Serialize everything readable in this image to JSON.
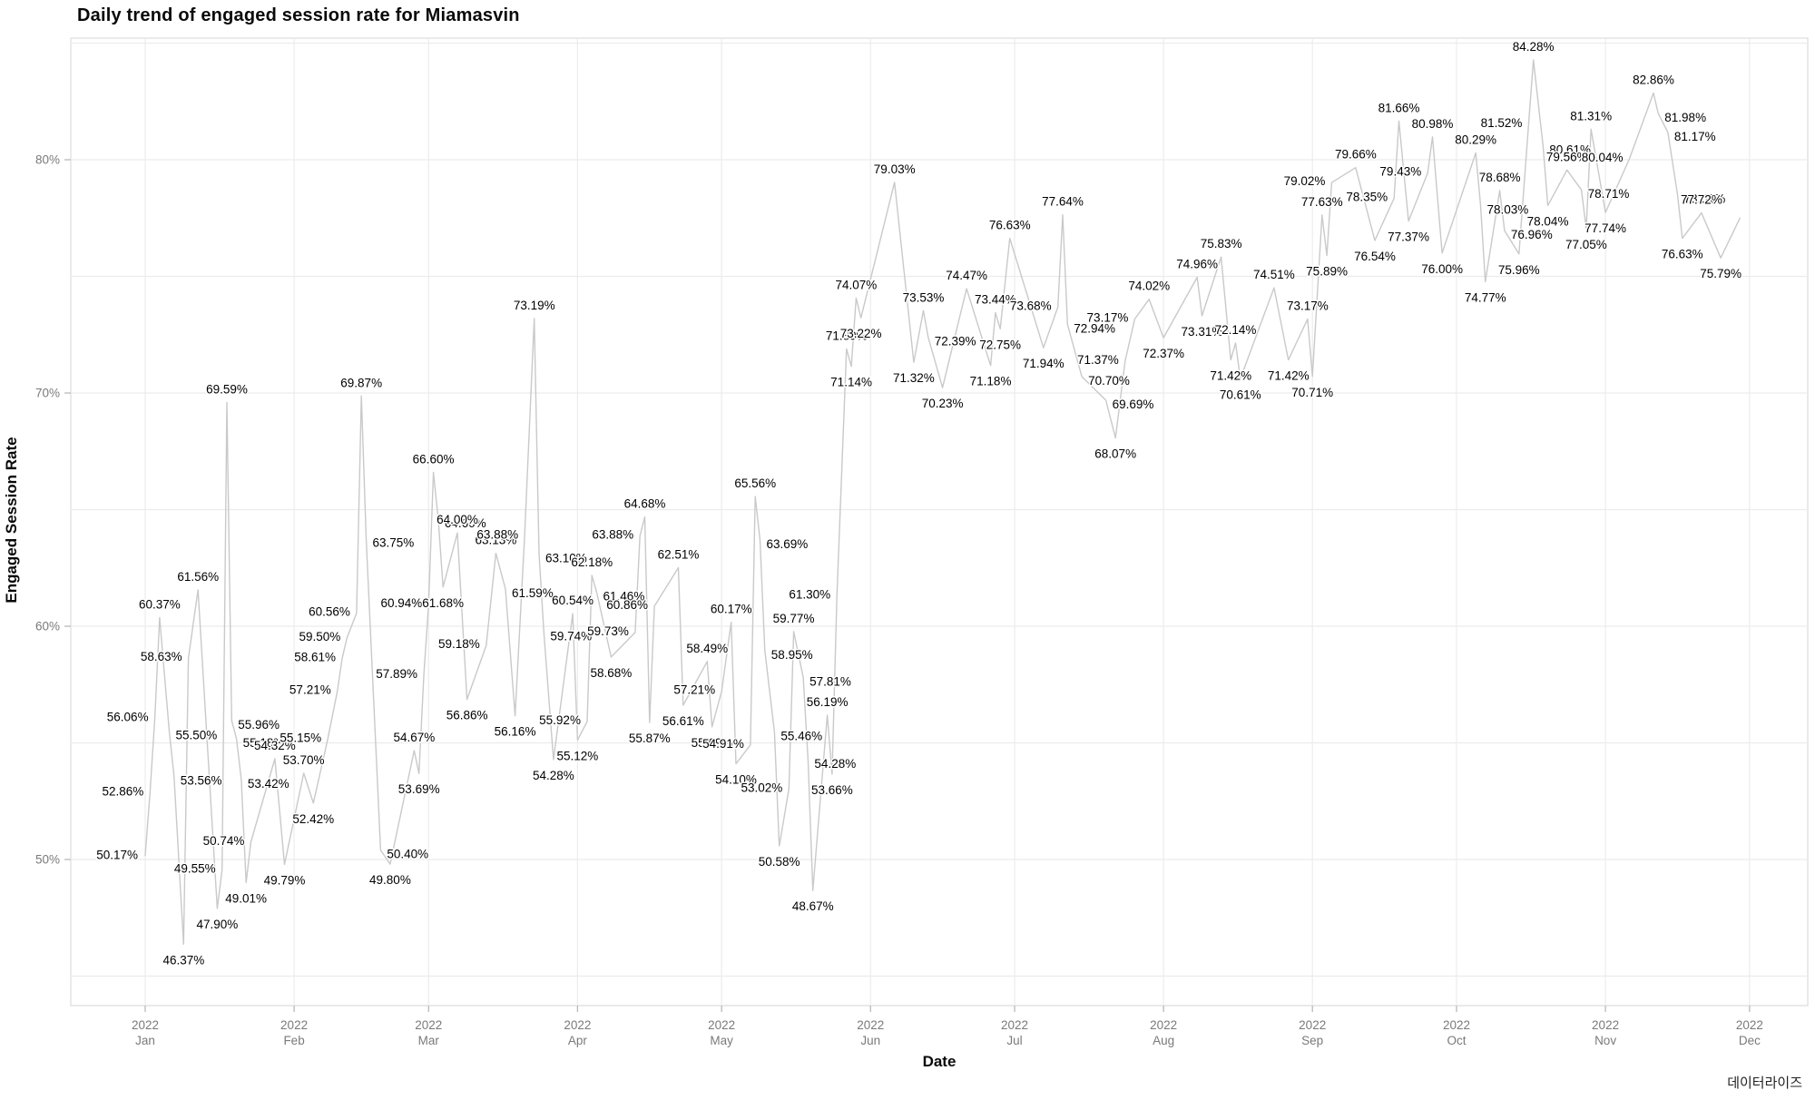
{
  "page": {
    "title": "Daily trend of engaged session rate for Miamasvin",
    "caption": "데이터라이즈"
  },
  "chart_data": {
    "type": "line",
    "title": "Daily trend of engaged session rate for Miamasvin",
    "xlabel": "Date",
    "ylabel": "Engaged Session Rate",
    "series_name": "engaged session rate",
    "year_label": "2022",
    "x_tick_months": [
      "Jan",
      "Feb",
      "Mar",
      "Apr",
      "May",
      "Jun",
      "Jul",
      "Aug",
      "Sep",
      "Oct",
      "Nov",
      "Dec"
    ],
    "y_ticks": [
      {
        "v": 50,
        "label": "50%"
      },
      {
        "v": 60,
        "label": "60%"
      },
      {
        "v": 70,
        "label": "70%"
      },
      {
        "v": 80,
        "label": "80%"
      }
    ],
    "ylim": [
      43.7,
      85.5
    ],
    "grid": true,
    "legend": false,
    "line_color": "#c9c9c9",
    "grid_color": "#ececec",
    "panel_border_color": "#dcdcdc",
    "tick_color": "#b3b3b3",
    "axis_text_color": "#7a7a7a",
    "label_color": "#000000",
    "points": [
      {
        "d": "2022-01-01",
        "v": 50.17
      },
      {
        "d": "2022-01-02",
        "v": 52.86
      },
      {
        "d": "2022-01-03",
        "v": 56.06
      },
      {
        "d": "2022-01-04",
        "v": 60.37
      },
      {
        "d": "2022-01-06",
        "v": 55.5
      },
      {
        "d": "2022-01-07",
        "v": 53.56
      },
      {
        "d": "2022-01-09",
        "v": 46.37
      },
      {
        "d": "2022-01-10",
        "v": 58.63
      },
      {
        "d": "2022-01-12",
        "v": 61.56
      },
      {
        "d": "2022-01-16",
        "v": 47.9
      },
      {
        "d": "2022-01-17",
        "v": 49.55
      },
      {
        "d": "2022-01-18",
        "v": 69.59
      },
      {
        "d": "2022-01-19",
        "v": 55.96
      },
      {
        "d": "2022-01-20",
        "v": 55.18
      },
      {
        "d": "2022-01-21",
        "v": 53.42
      },
      {
        "d": "2022-01-22",
        "v": 49.01
      },
      {
        "d": "2022-01-23",
        "v": 50.74
      },
      {
        "d": "2022-01-28",
        "v": 54.32
      },
      {
        "d": "2022-01-30",
        "v": 49.79
      },
      {
        "d": "2022-02-03",
        "v": 53.7
      },
      {
        "d": "2022-02-05",
        "v": 52.42
      },
      {
        "d": "2022-02-08",
        "v": 55.15
      },
      {
        "d": "2022-02-10",
        "v": 57.21
      },
      {
        "d": "2022-02-11",
        "v": 58.61
      },
      {
        "d": "2022-02-12",
        "v": 59.5
      },
      {
        "d": "2022-02-14",
        "v": 60.56
      },
      {
        "d": "2022-02-15",
        "v": 69.87
      },
      {
        "d": "2022-02-16",
        "v": 63.75
      },
      {
        "d": "2022-02-19",
        "v": 50.4
      },
      {
        "d": "2022-02-21",
        "v": 49.8
      },
      {
        "d": "2022-02-26",
        "v": 54.67
      },
      {
        "d": "2022-02-27",
        "v": 53.69
      },
      {
        "d": "2022-02-28",
        "v": 57.89
      },
      {
        "d": "2022-03-01",
        "v": 60.94
      },
      {
        "d": "2022-03-02",
        "v": 66.6
      },
      {
        "d": "2022-03-03",
        "v": 64.6
      },
      {
        "d": "2022-03-04",
        "v": 61.68
      },
      {
        "d": "2022-03-07",
        "v": 64.0
      },
      {
        "d": "2022-03-09",
        "v": 56.86
      },
      {
        "d": "2022-03-13",
        "v": 59.18
      },
      {
        "d": "2022-03-15",
        "v": 63.13
      },
      {
        "d": "2022-03-17",
        "v": 61.59
      },
      {
        "d": "2022-03-19",
        "v": 56.16
      },
      {
        "d": "2022-03-21",
        "v": 63.88
      },
      {
        "d": "2022-03-23",
        "v": 73.19
      },
      {
        "d": "2022-03-24",
        "v": 63.1
      },
      {
        "d": "2022-03-25",
        "v": 59.74
      },
      {
        "d": "2022-03-27",
        "v": 54.28
      },
      {
        "d": "2022-03-31",
        "v": 60.54
      },
      {
        "d": "2022-04-01",
        "v": 55.12
      },
      {
        "d": "2022-04-03",
        "v": 55.92
      },
      {
        "d": "2022-04-04",
        "v": 62.18
      },
      {
        "d": "2022-04-05",
        "v": 61.46
      },
      {
        "d": "2022-04-08",
        "v": 58.68
      },
      {
        "d": "2022-04-13",
        "v": 59.73
      },
      {
        "d": "2022-04-14",
        "v": 63.88
      },
      {
        "d": "2022-04-15",
        "v": 64.68
      },
      {
        "d": "2022-04-16",
        "v": 55.87
      },
      {
        "d": "2022-04-17",
        "v": 60.86
      },
      {
        "d": "2022-04-22",
        "v": 62.51
      },
      {
        "d": "2022-04-23",
        "v": 56.61
      },
      {
        "d": "2022-04-28",
        "v": 58.49
      },
      {
        "d": "2022-04-29",
        "v": 55.69
      },
      {
        "d": "2022-05-01",
        "v": 57.21
      },
      {
        "d": "2022-05-03",
        "v": 60.17
      },
      {
        "d": "2022-05-04",
        "v": 54.1
      },
      {
        "d": "2022-05-07",
        "v": 54.91
      },
      {
        "d": "2022-05-08",
        "v": 65.56
      },
      {
        "d": "2022-05-09",
        "v": 63.69
      },
      {
        "d": "2022-05-10",
        "v": 58.95
      },
      {
        "d": "2022-05-12",
        "v": 55.46
      },
      {
        "d": "2022-05-13",
        "v": 50.58
      },
      {
        "d": "2022-05-15",
        "v": 53.02
      },
      {
        "d": "2022-05-16",
        "v": 59.77
      },
      {
        "d": "2022-05-18",
        "v": 57.81
      },
      {
        "d": "2022-05-19",
        "v": 54.28
      },
      {
        "d": "2022-05-20",
        "v": 48.67
      },
      {
        "d": "2022-05-23",
        "v": 56.19
      },
      {
        "d": "2022-05-24",
        "v": 53.66
      },
      {
        "d": "2022-05-25",
        "v": 61.3
      },
      {
        "d": "2022-05-27",
        "v": 71.89
      },
      {
        "d": "2022-05-28",
        "v": 71.14
      },
      {
        "d": "2022-05-29",
        "v": 74.07
      },
      {
        "d": "2022-05-30",
        "v": 73.22
      },
      {
        "d": "2022-06-06",
        "v": 79.03
      },
      {
        "d": "2022-06-10",
        "v": 71.32
      },
      {
        "d": "2022-06-12",
        "v": 73.53
      },
      {
        "d": "2022-06-13",
        "v": 72.39
      },
      {
        "d": "2022-06-16",
        "v": 70.23
      },
      {
        "d": "2022-06-21",
        "v": 74.47
      },
      {
        "d": "2022-06-26",
        "v": 71.18
      },
      {
        "d": "2022-06-27",
        "v": 73.44
      },
      {
        "d": "2022-06-28",
        "v": 72.75
      },
      {
        "d": "2022-06-30",
        "v": 76.63
      },
      {
        "d": "2022-07-07",
        "v": 71.94
      },
      {
        "d": "2022-07-10",
        "v": 73.68
      },
      {
        "d": "2022-07-11",
        "v": 77.64
      },
      {
        "d": "2022-07-12",
        "v": 72.94
      },
      {
        "d": "2022-07-15",
        "v": 70.7
      },
      {
        "d": "2022-07-20",
        "v": 69.69
      },
      {
        "d": "2022-07-22",
        "v": 68.07
      },
      {
        "d": "2022-07-24",
        "v": 71.37
      },
      {
        "d": "2022-07-26",
        "v": 73.17
      },
      {
        "d": "2022-07-29",
        "v": 74.02
      },
      {
        "d": "2022-08-01",
        "v": 72.37
      },
      {
        "d": "2022-08-08",
        "v": 74.96
      },
      {
        "d": "2022-08-09",
        "v": 73.31
      },
      {
        "d": "2022-08-13",
        "v": 75.83
      },
      {
        "d": "2022-08-15",
        "v": 71.42
      },
      {
        "d": "2022-08-16",
        "v": 72.14
      },
      {
        "d": "2022-08-17",
        "v": 70.61
      },
      {
        "d": "2022-08-24",
        "v": 74.51
      },
      {
        "d": "2022-08-27",
        "v": 71.42
      },
      {
        "d": "2022-08-31",
        "v": 73.17
      },
      {
        "d": "2022-09-01",
        "v": 70.71
      },
      {
        "d": "2022-09-03",
        "v": 77.63
      },
      {
        "d": "2022-09-04",
        "v": 75.89
      },
      {
        "d": "2022-09-05",
        "v": 79.02
      },
      {
        "d": "2022-09-10",
        "v": 79.66
      },
      {
        "d": "2022-09-14",
        "v": 76.54
      },
      {
        "d": "2022-09-18",
        "v": 78.35
      },
      {
        "d": "2022-09-19",
        "v": 81.66
      },
      {
        "d": "2022-09-21",
        "v": 77.37
      },
      {
        "d": "2022-09-25",
        "v": 79.43
      },
      {
        "d": "2022-09-26",
        "v": 80.98
      },
      {
        "d": "2022-09-28",
        "v": 76.0
      },
      {
        "d": "2022-10-05",
        "v": 80.29
      },
      {
        "d": "2022-10-06",
        "v": 78.03
      },
      {
        "d": "2022-10-07",
        "v": 74.77
      },
      {
        "d": "2022-10-10",
        "v": 78.68
      },
      {
        "d": "2022-10-11",
        "v": 76.96
      },
      {
        "d": "2022-10-14",
        "v": 75.96
      },
      {
        "d": "2022-10-16",
        "v": 81.52
      },
      {
        "d": "2022-10-17",
        "v": 84.28
      },
      {
        "d": "2022-10-19",
        "v": 80.61
      },
      {
        "d": "2022-10-20",
        "v": 78.04
      },
      {
        "d": "2022-10-24",
        "v": 79.56
      },
      {
        "d": "2022-10-27",
        "v": 78.71
      },
      {
        "d": "2022-10-28",
        "v": 77.05
      },
      {
        "d": "2022-10-29",
        "v": 81.31
      },
      {
        "d": "2022-11-01",
        "v": 77.74
      },
      {
        "d": "2022-11-06",
        "v": 80.04
      },
      {
        "d": "2022-11-11",
        "v": 82.86
      },
      {
        "d": "2022-11-12",
        "v": 81.98
      },
      {
        "d": "2022-11-14",
        "v": 81.17
      },
      {
        "d": "2022-11-16",
        "v": 78.51
      },
      {
        "d": "2022-11-17",
        "v": 76.63
      },
      {
        "d": "2022-11-21",
        "v": 77.72
      },
      {
        "d": "2022-11-25",
        "v": 75.79
      },
      {
        "d": "2022-11-29",
        "v": 77.5,
        "noLabel": true
      }
    ]
  }
}
